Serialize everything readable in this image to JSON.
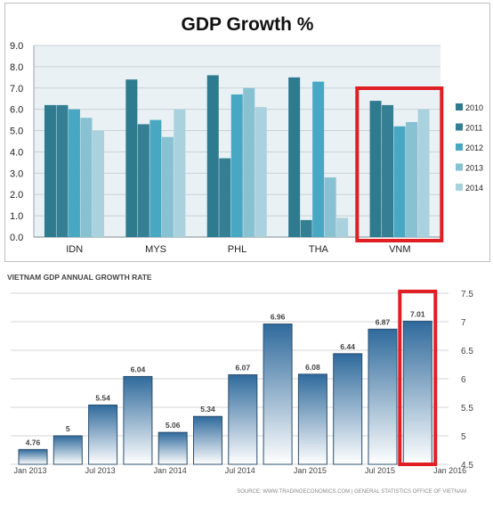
{
  "colors": {
    "top_plot_bg": "#e9f1f4",
    "top_grid": "#c9d3d8",
    "series": [
      "#2e7a8f",
      "#357f95",
      "#48a8c3",
      "#87c1d2",
      "#a9d1de"
    ],
    "highlight_box": "#e01e24",
    "bar_top": "#2f6a9c",
    "bar_bottom": "#ffffff",
    "bar_border": "#2d4f6e",
    "bottom_grid": "#c6c6c6",
    "bottom_text": "#444444"
  },
  "chart_data": [
    {
      "type": "bar",
      "title": "GDP Growth %",
      "categories": [
        "IDN",
        "MYS",
        "PHL",
        "THA",
        "VNM"
      ],
      "series": [
        {
          "name": "2010",
          "values": [
            6.2,
            7.4,
            7.6,
            7.5,
            6.4
          ]
        },
        {
          "name": "2011",
          "values": [
            6.2,
            5.3,
            3.7,
            0.8,
            6.2
          ]
        },
        {
          "name": "2012",
          "values": [
            6.0,
            5.5,
            6.7,
            7.3,
            5.2
          ]
        },
        {
          "name": "2013",
          "values": [
            5.6,
            4.7,
            7.0,
            2.8,
            5.4
          ]
        },
        {
          "name": "2014",
          "values": [
            5.0,
            6.0,
            6.1,
            0.9,
            6.0
          ]
        }
      ],
      "ylim": [
        0,
        9
      ],
      "yticks": [
        "0.0",
        "1.0",
        "2.0",
        "3.0",
        "4.0",
        "5.0",
        "6.0",
        "7.0",
        "8.0",
        "9.0"
      ],
      "xlabel": "",
      "ylabel": "",
      "grid": true,
      "legend": "right",
      "highlight": "VNM"
    },
    {
      "type": "bar",
      "title": "VIETNAM GDP ANNUAL GROWTH RATE",
      "categories": [
        "2013-Q1",
        "2013-Q2",
        "2013-Q3",
        "2013-Q4",
        "2014-Q1",
        "2014-Q2",
        "2014-Q3",
        "2014-Q4",
        "2015-Q1",
        "2015-Q2",
        "2015-Q3",
        "2015-Q4"
      ],
      "values": [
        4.76,
        5,
        5.54,
        6.04,
        5.06,
        5.34,
        6.07,
        6.96,
        6.08,
        6.44,
        6.87,
        7.01
      ],
      "value_labels": [
        "4.76",
        "5",
        "5.54",
        "6.04",
        "5.06",
        "5.34",
        "6.07",
        "6.96",
        "6.08",
        "6.44",
        "6.87",
        "7.01"
      ],
      "x_tick_labels": [
        "Jan 2013",
        "Jul 2013",
        "Jan 2014",
        "Jul 2014",
        "Jan 2015",
        "Jul 2015",
        "Jan 2016"
      ],
      "ylim": [
        4.5,
        7.5
      ],
      "yticks": [
        "4.5",
        "5",
        "5.5",
        "6",
        "6.5",
        "7",
        "7.5"
      ],
      "y_axis_side": "right",
      "grid": true,
      "source": "SOURCE: WWW.TRADINGECONOMICS.COM | GENERAL STATISTICS OFFICE OF VIETNAM",
      "highlight": "2015-Q4"
    }
  ]
}
